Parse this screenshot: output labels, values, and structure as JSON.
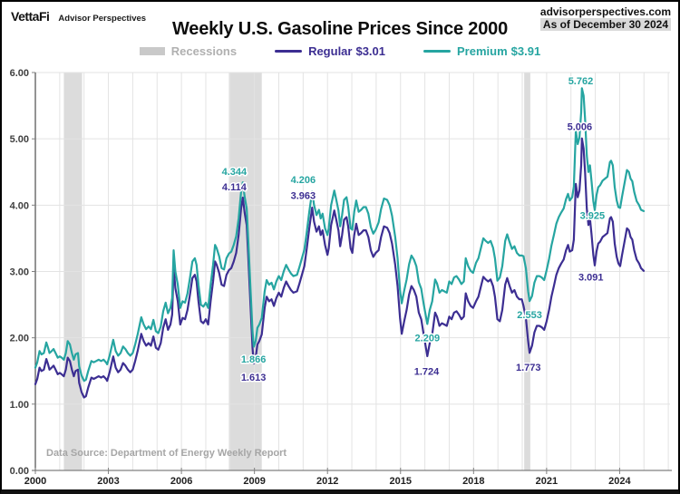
{
  "header": {
    "logo": "VettaFi",
    "logo_sub": "Advisor Perspectives",
    "site": "advisorperspectives.com",
    "as_of": "As of December 30 2024"
  },
  "title": "Weekly U.S. Gasoline Prices Since 2000",
  "legend": {
    "items": [
      {
        "label": "Recessions",
        "value": "",
        "kind": "band"
      },
      {
        "label": "Regular",
        "value": "$3.01",
        "kind": "line",
        "color_key": "regular"
      },
      {
        "label": "Premium",
        "value": "$3.91",
        "kind": "line",
        "color_key": "premium"
      }
    ]
  },
  "note": "Data Source: Department of Energy Weekly Report",
  "colors": {
    "regular": "#3c2e92",
    "premium": "#26a5a1",
    "recession_band": "#dcdcdc",
    "legend_gray_text": "#b0b0b0",
    "grid": "#e3e3e3",
    "axis": "#808080",
    "y_label": "#3f3f3f",
    "x_label": "#1f1f1f",
    "note_gray": "#a6a6a6"
  },
  "chart_data": {
    "type": "line",
    "title": "Weekly U.S. Gasoline Prices Since 2000",
    "xlabel": "",
    "ylabel": "",
    "x_unit": "year",
    "xlim": [
      2000,
      2026.07
    ],
    "ylim": [
      0,
      6
    ],
    "grid": true,
    "legend_position": "top",
    "y_ticks": [
      {
        "v": 6,
        "label": "6.00"
      },
      {
        "v": 5,
        "label": "5.00"
      },
      {
        "v": 4,
        "label": "4.00"
      },
      {
        "v": 3,
        "label": "3.00"
      },
      {
        "v": 2,
        "label": "2.00"
      },
      {
        "v": 1,
        "label": "1.00"
      },
      {
        "v": 0,
        "label": "0.00"
      }
    ],
    "x_tick_years": [
      2000,
      2003,
      2006,
      2009,
      2012,
      2015,
      2018,
      2021,
      2024
    ],
    "recessions": [
      [
        2001.17,
        2001.92
      ],
      [
        2007.95,
        2009.3
      ],
      [
        2020.08,
        2020.33
      ]
    ],
    "t": [
      2000.0,
      2000.08,
      2000.17,
      2000.25,
      2000.35,
      2000.45,
      2000.52,
      2000.58,
      2000.67,
      2000.75,
      2000.83,
      2000.92,
      2001.0,
      2001.08,
      2001.17,
      2001.25,
      2001.33,
      2001.42,
      2001.5,
      2001.58,
      2001.65,
      2001.75,
      2001.8,
      2001.9,
      2002.0,
      2002.08,
      2002.17,
      2002.3,
      2002.4,
      2002.5,
      2002.6,
      2002.7,
      2002.8,
      2002.9,
      2002.95,
      2003.05,
      2003.2,
      2003.3,
      2003.4,
      2003.5,
      2003.6,
      2003.7,
      2003.8,
      2003.9,
      2004.0,
      2004.1,
      2004.2,
      2004.35,
      2004.45,
      2004.55,
      2004.65,
      2004.75,
      2004.85,
      2004.95,
      2005.05,
      2005.15,
      2005.25,
      2005.35,
      2005.45,
      2005.55,
      2005.62,
      2005.68,
      2005.75,
      2005.85,
      2005.95,
      2006.05,
      2006.15,
      2006.25,
      2006.35,
      2006.45,
      2006.55,
      2006.62,
      2006.7,
      2006.8,
      2006.9,
      2007.0,
      2007.1,
      2007.2,
      2007.3,
      2007.38,
      2007.45,
      2007.55,
      2007.65,
      2007.75,
      2007.85,
      2007.95,
      2008.05,
      2008.15,
      2008.25,
      2008.35,
      2008.45,
      2008.52,
      2008.6,
      2008.68,
      2008.75,
      2008.85,
      2008.92,
      2008.97,
      2009.05,
      2009.12,
      2009.2,
      2009.3,
      2009.42,
      2009.5,
      2009.6,
      2009.7,
      2009.8,
      2009.9,
      2010.0,
      2010.1,
      2010.2,
      2010.3,
      2010.4,
      2010.5,
      2010.6,
      2010.75,
      2010.85,
      2010.95,
      2011.05,
      2011.15,
      2011.25,
      2011.37,
      2011.45,
      2011.55,
      2011.65,
      2011.72,
      2011.8,
      2011.9,
      2012.0,
      2012.05,
      2012.15,
      2012.28,
      2012.35,
      2012.45,
      2012.52,
      2012.6,
      2012.68,
      2012.78,
      2012.85,
      2012.95,
      2013.02,
      2013.1,
      2013.18,
      2013.28,
      2013.38,
      2013.48,
      2013.58,
      2013.68,
      2013.78,
      2013.88,
      2013.98,
      2014.1,
      2014.2,
      2014.32,
      2014.45,
      2014.55,
      2014.65,
      2014.78,
      2014.88,
      2014.98,
      2015.05,
      2015.15,
      2015.25,
      2015.35,
      2015.45,
      2015.55,
      2015.65,
      2015.75,
      2015.85,
      2015.95,
      2016.1,
      2016.2,
      2016.3,
      2016.42,
      2016.5,
      2016.6,
      2016.7,
      2016.8,
      2016.9,
      2017.0,
      2017.1,
      2017.2,
      2017.3,
      2017.4,
      2017.5,
      2017.6,
      2017.68,
      2017.78,
      2017.88,
      2017.98,
      2018.1,
      2018.2,
      2018.32,
      2018.4,
      2018.5,
      2018.6,
      2018.7,
      2018.8,
      2018.88,
      2018.98,
      2019.08,
      2019.18,
      2019.3,
      2019.38,
      2019.48,
      2019.58,
      2019.68,
      2019.78,
      2019.88,
      2019.98,
      2020.05,
      2020.15,
      2020.24,
      2020.3,
      2020.4,
      2020.5,
      2020.6,
      2020.7,
      2020.8,
      2020.9,
      2021.0,
      2021.1,
      2021.2,
      2021.3,
      2021.4,
      2021.5,
      2021.6,
      2021.7,
      2021.8,
      2021.88,
      2021.95,
      2022.05,
      2022.12,
      2022.2,
      2022.28,
      2022.35,
      2022.42,
      2022.45,
      2022.52,
      2022.58,
      2022.65,
      2022.72,
      2022.78,
      2022.85,
      2022.92,
      2022.98,
      2023.05,
      2023.12,
      2023.2,
      2023.3,
      2023.4,
      2023.5,
      2023.6,
      2023.65,
      2023.72,
      2023.8,
      2023.88,
      2023.95,
      2024.02,
      2024.1,
      2024.2,
      2024.3,
      2024.38,
      2024.45,
      2024.52,
      2024.6,
      2024.7,
      2024.8,
      2024.88,
      2024.99
    ],
    "series": [
      {
        "name": "Regular",
        "current": 3.01,
        "color_key": "regular",
        "values": [
          1.3,
          1.38,
          1.55,
          1.5,
          1.52,
          1.68,
          1.6,
          1.52,
          1.55,
          1.58,
          1.52,
          1.45,
          1.47,
          1.45,
          1.42,
          1.52,
          1.7,
          1.65,
          1.52,
          1.42,
          1.5,
          1.52,
          1.32,
          1.18,
          1.1,
          1.12,
          1.25,
          1.4,
          1.38,
          1.4,
          1.42,
          1.4,
          1.42,
          1.38,
          1.35,
          1.48,
          1.72,
          1.55,
          1.48,
          1.52,
          1.62,
          1.58,
          1.52,
          1.48,
          1.52,
          1.65,
          1.8,
          2.06,
          1.95,
          1.88,
          1.92,
          1.88,
          2.02,
          1.85,
          1.82,
          1.92,
          2.15,
          2.28,
          2.12,
          2.2,
          2.35,
          3.07,
          2.75,
          2.55,
          2.2,
          2.3,
          2.28,
          2.42,
          2.65,
          2.9,
          2.95,
          2.85,
          2.55,
          2.25,
          2.22,
          2.28,
          2.2,
          2.55,
          2.85,
          3.15,
          3.1,
          2.98,
          2.8,
          2.78,
          2.95,
          3.02,
          3.05,
          3.15,
          3.28,
          3.55,
          3.95,
          4.114,
          3.88,
          3.7,
          3.2,
          2.4,
          1.85,
          1.613,
          1.7,
          1.9,
          1.95,
          2.05,
          2.45,
          2.62,
          2.55,
          2.58,
          2.48,
          2.6,
          2.68,
          2.62,
          2.75,
          2.85,
          2.78,
          2.72,
          2.68,
          2.7,
          2.82,
          2.95,
          3.08,
          3.35,
          3.65,
          3.963,
          3.75,
          3.6,
          3.68,
          3.55,
          3.62,
          3.4,
          3.25,
          3.35,
          3.7,
          3.92,
          3.8,
          3.62,
          3.38,
          3.55,
          3.78,
          3.82,
          3.68,
          3.35,
          3.28,
          3.55,
          3.72,
          3.55,
          3.58,
          3.62,
          3.62,
          3.52,
          3.32,
          3.22,
          3.28,
          3.32,
          3.52,
          3.68,
          3.66,
          3.58,
          3.42,
          3.1,
          2.78,
          2.3,
          2.06,
          2.25,
          2.42,
          2.65,
          2.78,
          2.72,
          2.62,
          2.38,
          2.28,
          2.05,
          1.724,
          1.92,
          2.05,
          2.38,
          2.32,
          2.18,
          2.22,
          2.2,
          2.18,
          2.32,
          2.28,
          2.38,
          2.4,
          2.35,
          2.28,
          2.32,
          2.67,
          2.55,
          2.48,
          2.45,
          2.55,
          2.62,
          2.8,
          2.92,
          2.88,
          2.85,
          2.88,
          2.78,
          2.62,
          2.28,
          2.25,
          2.42,
          2.8,
          2.9,
          2.78,
          2.68,
          2.72,
          2.62,
          2.58,
          2.58,
          2.48,
          2.3,
          1.95,
          1.773,
          1.88,
          2.08,
          2.18,
          2.18,
          2.16,
          2.12,
          2.25,
          2.42,
          2.62,
          2.78,
          2.95,
          3.05,
          3.12,
          3.18,
          3.32,
          3.4,
          3.3,
          3.32,
          3.48,
          4.32,
          4.12,
          4.22,
          4.6,
          5.006,
          4.85,
          4.5,
          3.95,
          3.7,
          3.8,
          3.55,
          3.25,
          3.091,
          3.3,
          3.42,
          3.45,
          3.52,
          3.55,
          3.58,
          3.8,
          3.82,
          3.75,
          3.42,
          3.22,
          3.12,
          3.08,
          3.25,
          3.45,
          3.65,
          3.62,
          3.52,
          3.48,
          3.32,
          3.18,
          3.12,
          3.05,
          3.01
        ]
      },
      {
        "name": "Premium",
        "current": 3.91,
        "color_key": "premium",
        "values": [
          1.55,
          1.63,
          1.8,
          1.75,
          1.77,
          1.93,
          1.85,
          1.77,
          1.8,
          1.83,
          1.77,
          1.7,
          1.72,
          1.7,
          1.67,
          1.77,
          1.95,
          1.9,
          1.77,
          1.67,
          1.75,
          1.77,
          1.57,
          1.43,
          1.35,
          1.37,
          1.5,
          1.65,
          1.63,
          1.65,
          1.67,
          1.65,
          1.67,
          1.63,
          1.6,
          1.73,
          1.97,
          1.8,
          1.73,
          1.77,
          1.87,
          1.83,
          1.77,
          1.73,
          1.77,
          1.9,
          2.05,
          2.31,
          2.2,
          2.13,
          2.17,
          2.13,
          2.27,
          2.1,
          2.07,
          2.17,
          2.4,
          2.53,
          2.37,
          2.45,
          2.6,
          3.32,
          3.0,
          2.8,
          2.45,
          2.55,
          2.53,
          2.67,
          2.9,
          3.15,
          3.2,
          3.1,
          2.8,
          2.5,
          2.47,
          2.53,
          2.45,
          2.8,
          3.1,
          3.4,
          3.35,
          3.23,
          3.05,
          3.03,
          3.2,
          3.27,
          3.3,
          3.4,
          3.53,
          3.8,
          4.2,
          4.344,
          4.12,
          3.95,
          3.45,
          2.65,
          2.1,
          1.866,
          1.95,
          2.15,
          2.2,
          2.3,
          2.7,
          2.87,
          2.8,
          2.83,
          2.73,
          2.85,
          2.93,
          2.87,
          3.0,
          3.1,
          3.03,
          2.97,
          2.93,
          2.95,
          3.07,
          3.2,
          3.33,
          3.6,
          3.9,
          4.206,
          4.0,
          3.85,
          3.93,
          3.8,
          3.87,
          3.65,
          3.55,
          3.65,
          4.0,
          4.22,
          4.1,
          3.92,
          3.68,
          3.85,
          4.08,
          4.12,
          3.98,
          3.65,
          3.63,
          3.9,
          4.07,
          3.9,
          3.93,
          3.97,
          3.97,
          3.87,
          3.67,
          3.57,
          3.63,
          3.74,
          3.94,
          4.1,
          4.08,
          4.0,
          3.84,
          3.52,
          3.2,
          2.72,
          2.52,
          2.71,
          2.88,
          3.11,
          3.24,
          3.18,
          3.08,
          2.84,
          2.74,
          2.51,
          2.209,
          2.42,
          2.55,
          2.88,
          2.82,
          2.68,
          2.72,
          2.7,
          2.68,
          2.85,
          2.81,
          2.91,
          2.93,
          2.88,
          2.81,
          2.85,
          3.2,
          3.08,
          3.01,
          2.98,
          3.13,
          3.2,
          3.38,
          3.5,
          3.46,
          3.43,
          3.46,
          3.36,
          3.2,
          2.86,
          2.91,
          3.08,
          3.46,
          3.56,
          3.44,
          3.34,
          3.38,
          3.28,
          3.24,
          3.24,
          3.23,
          3.05,
          2.7,
          2.553,
          2.63,
          2.83,
          2.93,
          2.93,
          2.91,
          2.87,
          3.02,
          3.19,
          3.39,
          3.55,
          3.72,
          3.82,
          3.89,
          3.95,
          4.09,
          4.17,
          4.07,
          4.12,
          4.28,
          5.12,
          4.92,
          5.02,
          5.4,
          5.762,
          5.65,
          5.3,
          4.75,
          4.5,
          4.6,
          4.35,
          4.06,
          3.925,
          4.15,
          4.27,
          4.3,
          4.37,
          4.4,
          4.43,
          4.65,
          4.67,
          4.6,
          4.27,
          4.07,
          3.97,
          3.96,
          4.13,
          4.33,
          4.53,
          4.5,
          4.4,
          4.36,
          4.2,
          4.06,
          4.0,
          3.93,
          3.91
        ]
      }
    ],
    "annotations": [
      {
        "text": "4.344",
        "series": "premium",
        "t": 2008.17,
        "v": 4.51
      },
      {
        "text": "4.114",
        "series": "regular",
        "t": 2008.17,
        "v": 4.28
      },
      {
        "text": "4.206",
        "series": "premium",
        "t": 2011.0,
        "v": 4.39
      },
      {
        "text": "3.963",
        "series": "regular",
        "t": 2011.0,
        "v": 4.15
      },
      {
        "text": "1.866",
        "series": "premium",
        "t": 2008.96,
        "v": 1.68
      },
      {
        "text": "1.613",
        "series": "regular",
        "t": 2008.96,
        "v": 1.41
      },
      {
        "text": "2.209",
        "series": "premium",
        "t": 2016.1,
        "v": 2.0
      },
      {
        "text": "1.724",
        "series": "regular",
        "t": 2016.07,
        "v": 1.5
      },
      {
        "text": "2.553",
        "series": "premium",
        "t": 2020.3,
        "v": 2.35
      },
      {
        "text": "1.773",
        "series": "regular",
        "t": 2020.25,
        "v": 1.56
      },
      {
        "text": "5.762",
        "series": "premium",
        "t": 2022.4,
        "v": 5.88
      },
      {
        "text": "5.006",
        "series": "regular",
        "t": 2022.36,
        "v": 5.19
      },
      {
        "text": "3.925",
        "series": "premium",
        "t": 2022.88,
        "v": 3.85
      },
      {
        "text": "3.091",
        "series": "regular",
        "t": 2022.82,
        "v": 2.92
      }
    ]
  }
}
